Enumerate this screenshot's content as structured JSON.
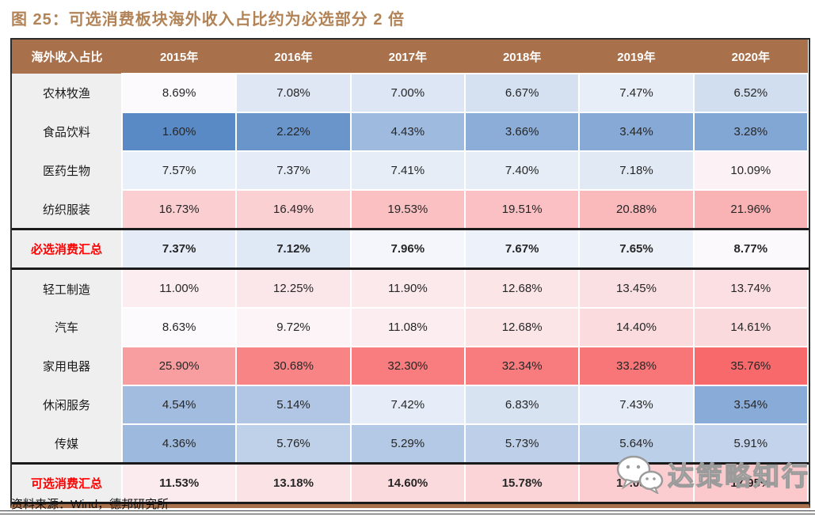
{
  "theme": {
    "title_color": "#B28357",
    "header_bg": "#A9714B",
    "header_text": "#FFFFFF",
    "label_bg": "#EFEFEF",
    "summary_label_color": "#FF0000",
    "table_border": "#2B2B2B",
    "bottom_bar": "#A9714B",
    "text": "#262626"
  },
  "chart_data": {
    "type": "heatmap",
    "title": "图 25：可选消费板块海外收入占比约为必选部分 2 倍",
    "row_header": "海外收入占比",
    "columns": [
      "2015年",
      "2016年",
      "2017年",
      "2018年",
      "2019年",
      "2020年"
    ],
    "rows": [
      {
        "label": "农林牧渔",
        "summary": false,
        "values": [
          8.69,
          7.08,
          7.0,
          6.67,
          7.47,
          6.52
        ]
      },
      {
        "label": "食品饮料",
        "summary": false,
        "values": [
          1.6,
          2.22,
          4.43,
          3.66,
          3.44,
          3.28
        ]
      },
      {
        "label": "医药生物",
        "summary": false,
        "values": [
          7.57,
          7.37,
          7.41,
          7.4,
          7.18,
          10.09
        ]
      },
      {
        "label": "纺织服装",
        "summary": false,
        "values": [
          16.73,
          16.49,
          19.53,
          19.51,
          20.88,
          21.96
        ]
      },
      {
        "label": "必选消费汇总",
        "summary": true,
        "values": [
          7.37,
          7.12,
          7.96,
          7.67,
          7.65,
          8.77
        ]
      },
      {
        "label": "轻工制造",
        "summary": false,
        "values": [
          11.0,
          12.25,
          11.9,
          12.68,
          13.45,
          13.74
        ]
      },
      {
        "label": "汽车",
        "summary": false,
        "values": [
          8.63,
          9.72,
          11.08,
          12.68,
          14.4,
          14.61
        ]
      },
      {
        "label": "家用电器",
        "summary": false,
        "values": [
          25.9,
          30.68,
          32.3,
          32.34,
          33.28,
          35.76
        ]
      },
      {
        "label": "休闲服务",
        "summary": false,
        "values": [
          4.54,
          5.14,
          7.42,
          6.83,
          7.43,
          3.54
        ]
      },
      {
        "label": "传媒",
        "summary": false,
        "values": [
          4.36,
          5.76,
          5.29,
          5.73,
          5.64,
          5.91
        ]
      },
      {
        "label": "可选消费汇总",
        "summary": true,
        "values": [
          11.53,
          13.18,
          14.6,
          15.78,
          17.05,
          17.95
        ]
      }
    ],
    "value_format": "0.00%",
    "color_scale": {
      "min": 1.6,
      "min_color": "#5A8AC6",
      "mid": 8.3,
      "mid_color": "#FCFCFF",
      "max": 35.76,
      "max_color": "#F8696B"
    },
    "legend_position": "none",
    "grid": "white-cell-borders"
  },
  "footer": {
    "source": "资料来源：Wind，德邦研究所"
  },
  "watermark": {
    "icon": "wechat-icon",
    "text": "达策略知行"
  }
}
